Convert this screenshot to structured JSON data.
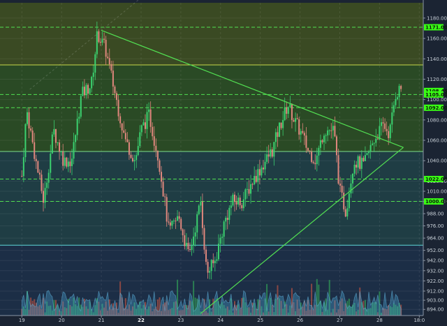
{
  "chart_data": {
    "type": "candlestick",
    "x_ticks": [
      "19",
      "20",
      "21",
      "22",
      "23",
      "24",
      "25",
      "26",
      "27",
      "28",
      "18:0"
    ],
    "bold_x_tick": "22",
    "y_ticks": [
      "1180.00",
      "1160.00",
      "1140.00",
      "1120.00",
      "1100.00",
      "1080.00",
      "1060.00",
      "1040.00",
      "1020.00",
      "1010.00",
      "1000.00",
      "988.00",
      "976.00",
      "964.00",
      "952.00",
      "942.00",
      "932.00",
      "922.00",
      "912.00",
      "903.00",
      "894.00"
    ],
    "price_badges": [
      {
        "label": "1171.00",
        "value": 1171,
        "color": "#39ff14"
      },
      {
        "label": "1108.45",
        "value": 1108.45,
        "color": "#39ff14"
      },
      {
        "label": "1105.00",
        "value": 1105,
        "color": "#39ff14"
      },
      {
        "label": "1092.00",
        "value": 1092,
        "color": "#39ff14"
      },
      {
        "label": "1022.00",
        "value": 1022,
        "color": "#39ff14"
      },
      {
        "label": "1000.00",
        "value": 1000,
        "color": "#39ff14"
      }
    ],
    "dashed_levels": [
      1171,
      1105,
      1092,
      1022,
      1000
    ],
    "solid_levels": [
      {
        "value": 1134,
        "color": "#c8d84a"
      },
      {
        "value": 1049,
        "color": "#7fe08a"
      },
      {
        "value": 957,
        "color": "#5fd8d8"
      }
    ],
    "zones": [
      {
        "from": 1134,
        "to": 1195,
        "color": "#3a4a23"
      },
      {
        "from": 1049,
        "to": 1134,
        "color": "#2a4a25"
      },
      {
        "from": 957,
        "to": 1049,
        "color": "#1f3d44"
      },
      {
        "from": 888,
        "to": 957,
        "color": "#1c2e46"
      }
    ],
    "trendlines": [
      {
        "from": [
          2.0,
          1168
        ],
        "to": [
          9.6,
          1053
        ],
        "color": "#52e052"
      },
      {
        "from": [
          4.5,
          890
        ],
        "to": [
          9.6,
          1053
        ],
        "color": "#52e052"
      }
    ],
    "ohlc_anchors": [
      [
        0.0,
        1025
      ],
      [
        0.12,
        1090
      ],
      [
        0.35,
        1040
      ],
      [
        0.55,
        1000
      ],
      [
        0.8,
        1070
      ],
      [
        1.05,
        1040
      ],
      [
        1.25,
        1040
      ],
      [
        1.5,
        1105
      ],
      [
        1.75,
        1115
      ],
      [
        1.9,
        1165
      ],
      [
        2.1,
        1150
      ],
      [
        2.35,
        1105
      ],
      [
        2.6,
        1060
      ],
      [
        2.85,
        1040
      ],
      [
        3.0,
        1070
      ],
      [
        3.2,
        1085
      ],
      [
        3.45,
        1040
      ],
      [
        3.7,
        970
      ],
      [
        3.95,
        985
      ],
      [
        4.2,
        945
      ],
      [
        4.5,
        1000
      ],
      [
        4.65,
        930
      ],
      [
        4.85,
        940
      ],
      [
        5.1,
        980
      ],
      [
        5.3,
        1000
      ],
      [
        5.55,
        1000
      ],
      [
        5.8,
        1020
      ],
      [
        6.05,
        1035
      ],
      [
        6.3,
        1050
      ],
      [
        6.5,
        1075
      ],
      [
        6.7,
        1095
      ],
      [
        6.85,
        1080
      ],
      [
        7.05,
        1065
      ],
      [
        7.2,
        1050
      ],
      [
        7.4,
        1040
      ],
      [
        7.6,
        1070
      ],
      [
        7.85,
        1070
      ],
      [
        8.0,
        1010
      ],
      [
        8.15,
        990
      ],
      [
        8.35,
        1040
      ],
      [
        8.6,
        1035
      ],
      [
        8.85,
        1060
      ],
      [
        9.1,
        1075
      ],
      [
        9.25,
        1066
      ],
      [
        9.4,
        1105
      ],
      [
        9.55,
        1112
      ]
    ],
    "x_range": [
      -0.55,
      10.1
    ],
    "y_range": [
      888,
      1195
    ],
    "grid": true
  }
}
